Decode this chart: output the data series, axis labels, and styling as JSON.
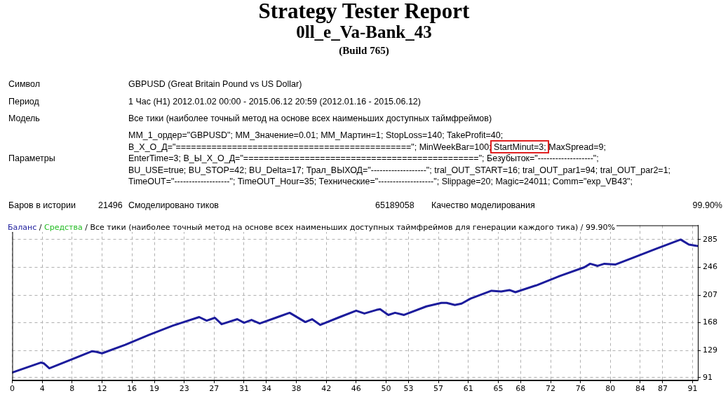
{
  "chart_data": {
    "type": "line",
    "title": "Strategy Tester Report",
    "subtitle": "0ll_e_Va-Bank_43",
    "annotations": [
      "(Build 765)",
      "Символ",
      "GBPUSD (Great Britain Pound vs US Dollar)",
      "Период",
      "1 Час (H1) 2012.01.02 00:00 - 2015.06.12 20:59 (2012.01.16 - 2015.06.12)",
      "Модель",
      "Все тики (наиболее точный метод на основе всех наименьших доступных таймфреймов)",
      "Параметры",
      "MM_1_ордер=\"GBPUSD\"; MM_Значение=0.01; MM_Мартин=1; StopLoss=140; TakeProfit=40;",
      "В_Х_О_Д=\"==============================================\"; MinWeekBar=100; StartMinut=3; MaxSpread=9;",
      "EnterTime=3; В_Ы_Х_О_Д=\"==============================================\"; Безубыток=\"-------------------\";",
      "BU_USE=true; BU_STOP=42; BU_Delta=17; Трал_ВЫХОД=\"-------------------\"; tral_OUT_START=16; tral_OUT_par1=94; tral_OUT_par2=1;",
      "TimeOUT=\"-------------------\"; TimeOUT_Hour=35; Технические=\"-------------------\"; Slippage=20; Magic=24011; Comm=\"exp_VB43\";",
      "Баров в истории",
      "21496",
      "Смоделировано тиков",
      "65189058",
      "Качество моделирования",
      "99.90%",
      "/",
      "/ Все тики (наиболее точный метод на основе всех наименьших доступных таймфреймов для генерации каждого тика) / 99.90%"
    ],
    "xlim": [
      0,
      91.7
    ],
    "ylim": [
      87,
      305
    ],
    "xticks": [
      0,
      4,
      8,
      12,
      16,
      19,
      23,
      27,
      31,
      34,
      38,
      42,
      46,
      50,
      53,
      57,
      61,
      65,
      68,
      72,
      76,
      80,
      84,
      87,
      91
    ],
    "yticks": [
      91,
      129,
      168,
      207,
      246,
      285
    ],
    "grid": true,
    "legend": "top left",
    "line_style": "solid",
    "marker": "none",
    "series": [
      {
        "name": "Баланс",
        "color": "#1c1c9c",
        "x": [
          0,
          3.85,
          4.2,
          4.96,
          10.7,
          11.3,
          12.0,
          15.1,
          18.3,
          21.5,
          25.0,
          26.0,
          27.1,
          28.0,
          30.1,
          31.0,
          32.0,
          33.1,
          35.5,
          37.1,
          39.2,
          40.1,
          41.2,
          43.8,
          46.0,
          47.1,
          48.7,
          49.2,
          50.3,
          51.2,
          52.4,
          55.4,
          57.4,
          58.1,
          59.2,
          60.1,
          61.3,
          64.1,
          65.4,
          66.5,
          67.3,
          70.2,
          73.3,
          76.5,
          77.3,
          78.3,
          79.2,
          80.7,
          82.9,
          86.1,
          89.4,
          90.5,
          91.6
        ],
        "values": [
          98,
          112,
          111,
          104,
          128,
          127,
          125,
          137,
          151,
          164,
          176,
          171,
          175,
          166,
          173,
          168,
          172,
          167,
          176,
          182,
          169,
          173,
          165,
          176,
          185,
          181,
          186,
          187,
          179,
          182,
          179,
          191,
          196,
          196,
          193,
          195,
          202,
          213,
          212,
          214,
          211,
          221,
          234,
          246,
          251,
          248,
          251,
          250,
          259,
          272,
          285,
          278,
          276
        ]
      },
      {
        "name": "Средства",
        "color": "#22bb22"
      }
    ]
  }
}
